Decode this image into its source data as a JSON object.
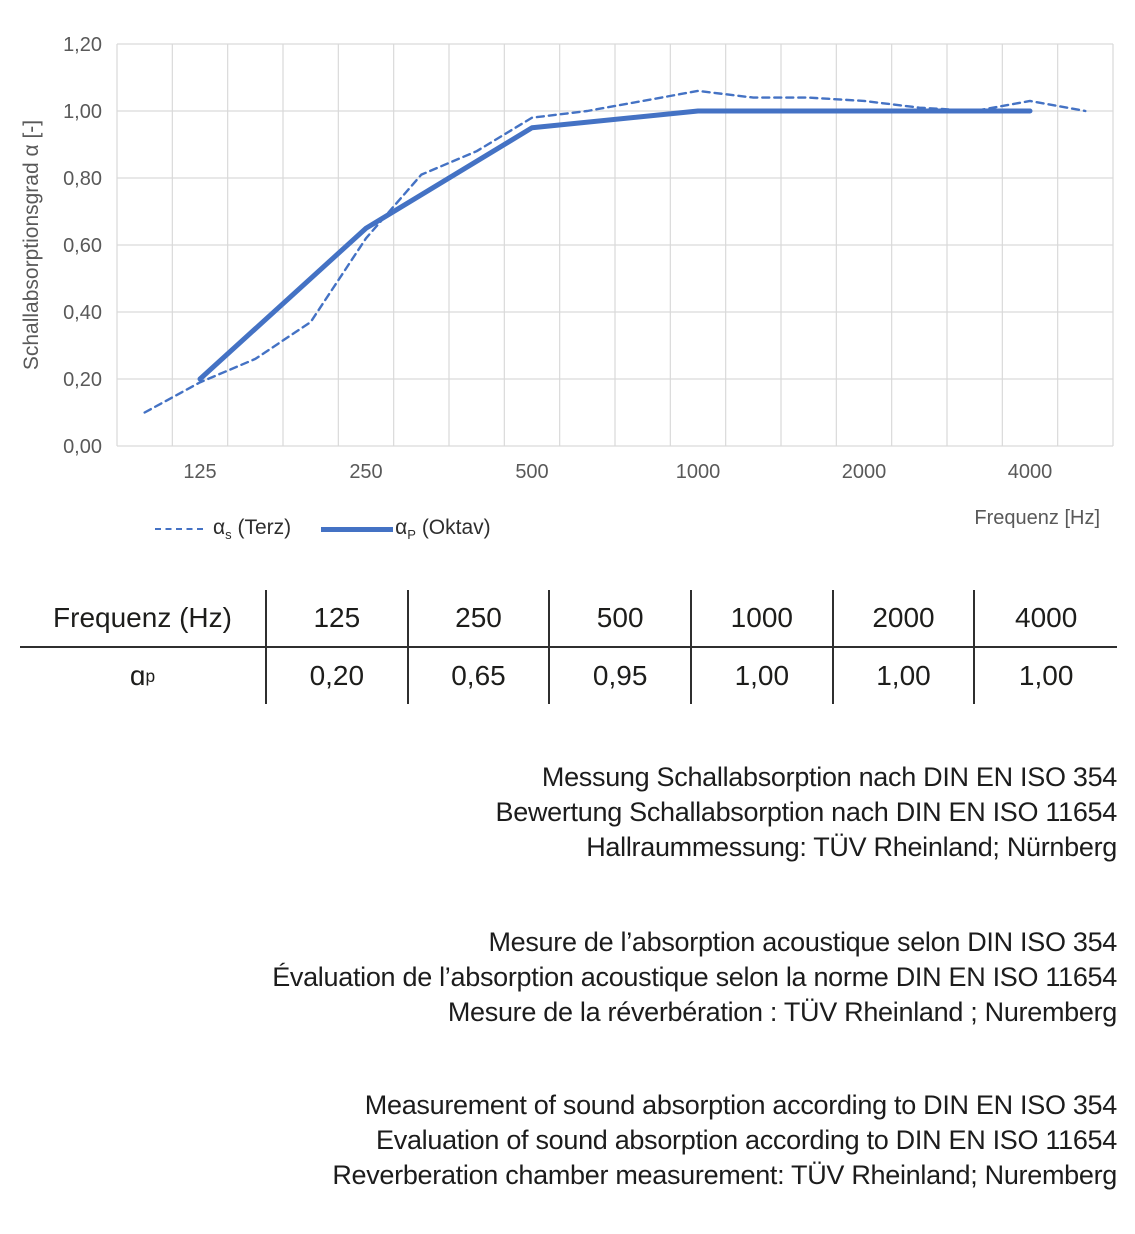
{
  "chart_data": {
    "type": "line",
    "title": "",
    "ylabel": "Schallabsorptionsgrad α [-]",
    "xlabel": "Frequenz [Hz]",
    "ylim": [
      0,
      1.2
    ],
    "ytick_step": 0.2,
    "ytick_labels": [
      "0,00",
      "0,20",
      "0,40",
      "0,60",
      "0,80",
      "1,00",
      "1,20"
    ],
    "categories": [
      100,
      125,
      160,
      200,
      250,
      315,
      400,
      500,
      630,
      800,
      1000,
      1250,
      1600,
      2000,
      2500,
      3150,
      4000,
      5000
    ],
    "xtick_labels": [
      "125",
      "250",
      "500",
      "1000",
      "2000",
      "4000"
    ],
    "xtick_category_indexes": [
      1,
      4,
      7,
      10,
      13,
      16
    ],
    "grid": true,
    "legend_position": "bottom-left",
    "series": [
      {
        "name": "αs (Terz)",
        "line": "dashed",
        "categories": "all",
        "values": [
          0.1,
          0.19,
          0.26,
          0.37,
          0.62,
          0.81,
          0.88,
          0.98,
          1.0,
          1.03,
          1.06,
          1.04,
          1.04,
          1.03,
          1.01,
          1.0,
          1.03,
          1.0
        ]
      },
      {
        "name": "αP (Oktav)",
        "line": "solid",
        "categories": [
          125,
          250,
          500,
          1000,
          2000,
          4000
        ],
        "values": [
          0.2,
          0.65,
          0.95,
          1.0,
          1.0,
          1.0
        ]
      }
    ],
    "colors": {
      "line": "#4472C4",
      "grid": "#D9D9D9",
      "axis_text": "#595959"
    }
  },
  "legend": {
    "items": [
      {
        "symbol": "α",
        "sub": "s",
        "rest": " (Terz)",
        "style": "dashed"
      },
      {
        "symbol": "α",
        "sub": "P",
        "rest": " (Oktav)",
        "style": "solid"
      }
    ]
  },
  "x_axis_title": "Frequenz [Hz]",
  "table": {
    "header": [
      "Frequenz (Hz)",
      "125",
      "250",
      "500",
      "1000",
      "2000",
      "4000"
    ],
    "row_label": {
      "symbol": "ɑ",
      "sub": "p"
    },
    "row_values": [
      "0,20",
      "0,65",
      "0,95",
      "1,00",
      "1,00",
      "1,00"
    ]
  },
  "notes": {
    "german": [
      "Messung Schallabsorption nach DIN EN ISO 354",
      "Bewertung Schallabsorption nach DIN EN ISO 11654",
      "Hallraummessung: TÜV Rheinland; Nürnberg"
    ],
    "french": [
      "Mesure de l’absorption acoustique selon DIN ISO 354",
      "Évaluation de l’absorption acoustique selon la norme DIN EN ISO 11654",
      "Mesure de la réverbération : TÜV Rheinland ; Nuremberg"
    ],
    "english": [
      "Measurement of sound absorption according to DIN EN ISO 354",
      "Evaluation of sound absorption according to DIN EN ISO 11654",
      "Reverberation chamber measurement: TÜV Rheinland; Nuremberg"
    ]
  }
}
